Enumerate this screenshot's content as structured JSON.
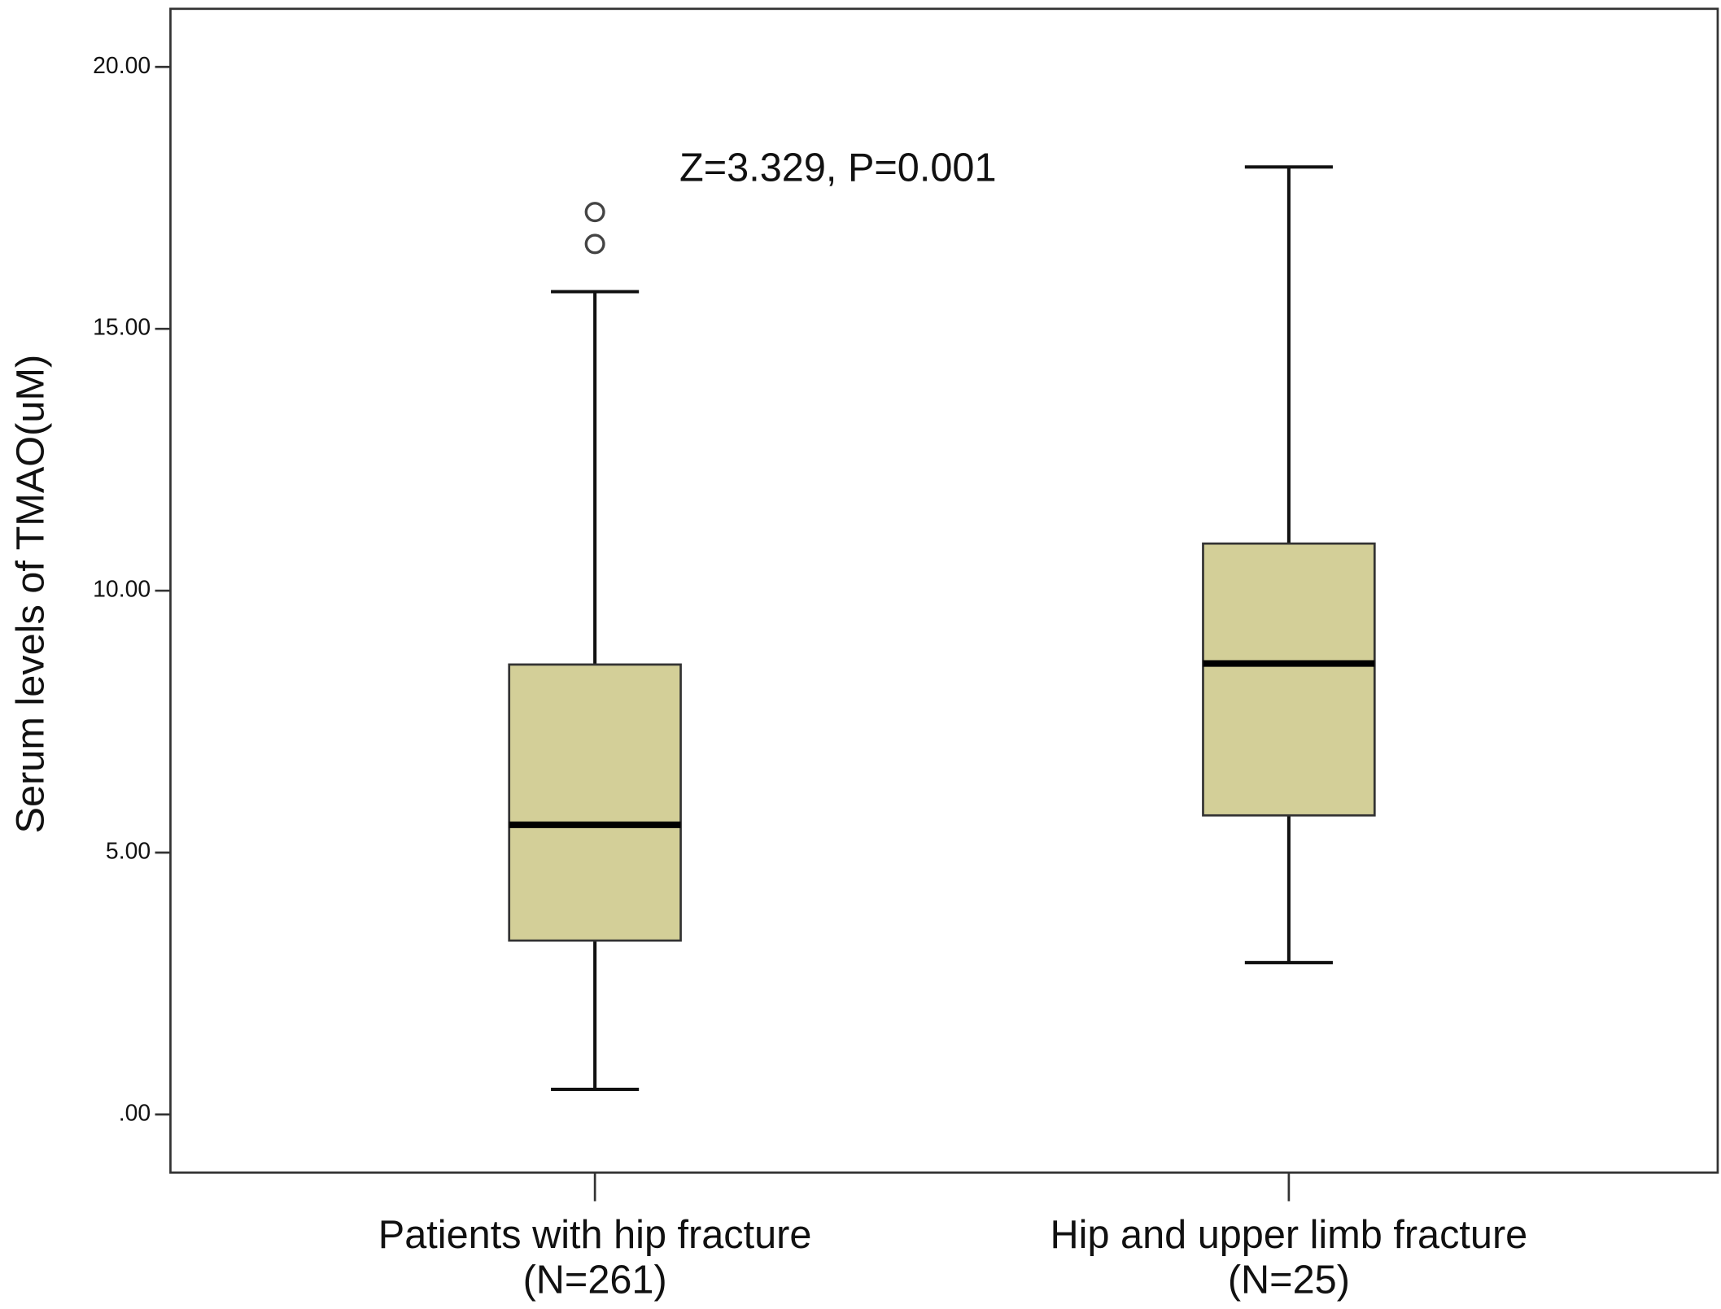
{
  "chart_data": {
    "type": "box",
    "y_label": "Serum levels of TMAO(uM)",
    "annotation": "Z=3.329, P=0.001",
    "categories": [
      "Patients with hip fracture",
      "Hip and upper limb fracture"
    ],
    "category_notes": [
      "(N=261)",
      "(N=25)"
    ],
    "color": "#d3cf98",
    "boxes": [
      {
        "whislo": 0.48,
        "q1": 3.32,
        "med": 5.53,
        "q3": 8.59,
        "whishi": 15.71,
        "fliers": [
          16.62,
          17.23
        ]
      },
      {
        "whislo": 2.9,
        "q1": 5.71,
        "med": 8.61,
        "q3": 10.9,
        "whishi": 18.09,
        "fliers": []
      }
    ],
    "ylim": [
      -1.11,
      21.11
    ],
    "yticks": [
      {
        "value": 0,
        "label": ".00"
      },
      {
        "value": 5,
        "label": "5.00"
      },
      {
        "value": 10,
        "label": "10.00"
      },
      {
        "value": 15,
        "label": "15.00"
      },
      {
        "value": 20,
        "label": "20.00"
      }
    ]
  }
}
